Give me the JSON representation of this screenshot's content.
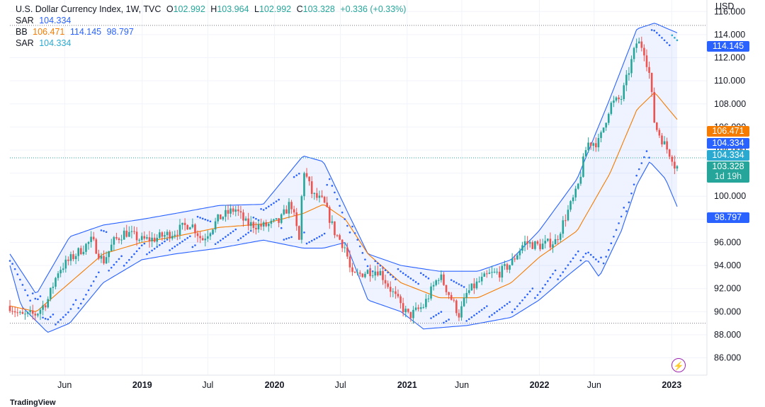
{
  "legend": {
    "symbol": "U.S. Dollar Currency Index, 1W, TVC",
    "o_label": "O",
    "o": "102.992",
    "h_label": "H",
    "h": "103.964",
    "l_label": "L",
    "l": "102.992",
    "c_label": "C",
    "c": "103.328",
    "change": "+0.336 (+0.33%)",
    "sar1_label": "SAR",
    "sar1": "104.334",
    "bb_label": "BB",
    "bb_basis": "106.471",
    "bb_upper": "114.145",
    "bb_lower": "98.797",
    "sar2_label": "SAR",
    "sar2": "104.334"
  },
  "axis": {
    "currency": "USD"
  },
  "price_tags": {
    "bb_upper": "114.145",
    "bb_basis": "106.471",
    "sar1": "104.334",
    "sar2": "104.334",
    "close": "103.328",
    "countdown": "1d 19h",
    "bb_lower": "98.797"
  },
  "colors": {
    "up": "#26a69a",
    "down": "#ef5350",
    "bb_band": "#2962ff",
    "bb_basis": "#f57c00",
    "sar": "#2962ff",
    "sar2": "#2aaad0"
  },
  "icons": [
    "lightning-icon",
    "tradingview-logo-icon"
  ],
  "footer": {
    "brand": "TradingView"
  },
  "chart_data": {
    "type": "candlestick",
    "y_axis": {
      "ticks": [
        "86.000",
        "88.000",
        "90.000",
        "92.000",
        "94.000",
        "96.000",
        "98.000",
        "100.000",
        "102.000",
        "104.000",
        "106.000",
        "108.000",
        "110.000",
        "112.000",
        "114.000",
        "116.000"
      ],
      "range": [
        84.5,
        117.0
      ]
    },
    "x_axis": {
      "ticks": [
        "Jun",
        "2019",
        "Jul",
        "2020",
        "Jul",
        "2021",
        "Jun",
        "2022",
        "Jun",
        "2023"
      ],
      "range": [
        "2018-01-01",
        "2023-01-20"
      ]
    },
    "tick_dates": [
      "2018-06-01",
      "2019-01-01",
      "2019-07-01",
      "2020-01-01",
      "2020-07-01",
      "2021-01-01",
      "2021-06-01",
      "2022-01-01",
      "2022-06-01",
      "2023-01-01"
    ],
    "reference_lines": [
      114.8,
      89.0
    ],
    "series": [
      {
        "name": "Close (approx.)",
        "points": [
          [
            "2018-01-01",
            90.5
          ],
          [
            "2018-02-01",
            89.6
          ],
          [
            "2018-03-15",
            89.8
          ],
          [
            "2018-04-15",
            91.0
          ],
          [
            "2018-05-15",
            93.6
          ],
          [
            "2018-06-15",
            94.5
          ],
          [
            "2018-08-15",
            96.2
          ],
          [
            "2018-09-15",
            94.3
          ],
          [
            "2018-10-15",
            96.1
          ],
          [
            "2018-11-15",
            96.9
          ],
          [
            "2018-12-31",
            96.2
          ],
          [
            "2019-02-01",
            96.3
          ],
          [
            "2019-04-01",
            96.9
          ],
          [
            "2019-05-15",
            97.7
          ],
          [
            "2019-06-15",
            96.2
          ],
          [
            "2019-08-01",
            98.1
          ],
          [
            "2019-09-15",
            98.9
          ],
          [
            "2019-10-15",
            97.6
          ],
          [
            "2019-12-01",
            97.4
          ],
          [
            "2020-01-15",
            97.8
          ],
          [
            "2020-02-15",
            99.5
          ],
          [
            "2020-03-10",
            96.0
          ],
          [
            "2020-03-20",
            102.5
          ],
          [
            "2020-04-15",
            100.1
          ],
          [
            "2020-05-15",
            99.5
          ],
          [
            "2020-06-15",
            96.9
          ],
          [
            "2020-07-15",
            95.5
          ],
          [
            "2020-08-01",
            93.0
          ],
          [
            "2020-09-15",
            93.5
          ],
          [
            "2020-10-15",
            93.6
          ],
          [
            "2020-11-15",
            92.0
          ],
          [
            "2020-12-15",
            90.5
          ],
          [
            "2021-01-06",
            89.6
          ],
          [
            "2021-02-15",
            90.5
          ],
          [
            "2021-03-31",
            93.2
          ],
          [
            "2021-04-30",
            91.3
          ],
          [
            "2021-05-25",
            89.7
          ],
          [
            "2021-06-15",
            91.6
          ],
          [
            "2021-07-15",
            92.5
          ],
          [
            "2021-08-15",
            93.2
          ],
          [
            "2021-09-15",
            93.4
          ],
          [
            "2021-10-15",
            94.2
          ],
          [
            "2021-11-20",
            96.0
          ],
          [
            "2021-12-31",
            95.7
          ],
          [
            "2022-02-15",
            96.1
          ],
          [
            "2022-03-15",
            98.3
          ],
          [
            "2022-04-15",
            100.5
          ],
          [
            "2022-05-13",
            104.6
          ],
          [
            "2022-06-15",
            104.7
          ],
          [
            "2022-07-15",
            107.9
          ],
          [
            "2022-08-15",
            108.5
          ],
          [
            "2022-09-27",
            113.4
          ],
          [
            "2022-10-15",
            112.9
          ],
          [
            "2022-11-01",
            110.5
          ],
          [
            "2022-11-15",
            106.2
          ],
          [
            "2022-12-15",
            104.3
          ],
          [
            "2023-01-06",
            103.2
          ],
          [
            "2023-01-13",
            102.0
          ],
          [
            "2023-01-20",
            103.3
          ]
        ]
      },
      {
        "name": "BB Upper (approx.)",
        "points": [
          [
            "2018-01-01",
            95.0
          ],
          [
            "2018-03-15",
            91.5
          ],
          [
            "2018-06-15",
            96.5
          ],
          [
            "2018-09-15",
            97.5
          ],
          [
            "2018-12-31",
            98.0
          ],
          [
            "2019-04-01",
            98.5
          ],
          [
            "2019-08-01",
            99.2
          ],
          [
            "2019-12-01",
            99.3
          ],
          [
            "2020-03-20",
            103.5
          ],
          [
            "2020-05-15",
            103.0
          ],
          [
            "2020-07-15",
            99.0
          ],
          [
            "2020-09-15",
            95.0
          ],
          [
            "2020-12-15",
            94.0
          ],
          [
            "2021-03-31",
            93.5
          ],
          [
            "2021-07-15",
            93.5
          ],
          [
            "2021-10-15",
            94.5
          ],
          [
            "2021-12-31",
            97.0
          ],
          [
            "2022-04-15",
            101.5
          ],
          [
            "2022-07-15",
            108.5
          ],
          [
            "2022-09-27",
            114.5
          ],
          [
            "2022-11-15",
            115.0
          ],
          [
            "2023-01-20",
            114.1
          ]
        ]
      },
      {
        "name": "BB Basis (approx.)",
        "points": [
          [
            "2018-01-01",
            90.5
          ],
          [
            "2018-03-15",
            90.0
          ],
          [
            "2018-06-15",
            92.5
          ],
          [
            "2018-09-15",
            95.0
          ],
          [
            "2018-12-31",
            96.0
          ],
          [
            "2019-04-01",
            96.5
          ],
          [
            "2019-08-01",
            97.3
          ],
          [
            "2019-12-01",
            97.6
          ],
          [
            "2020-03-20",
            98.5
          ],
          [
            "2020-05-15",
            99.3
          ],
          [
            "2020-07-15",
            98.0
          ],
          [
            "2020-09-15",
            95.0
          ],
          [
            "2020-12-15",
            92.5
          ],
          [
            "2021-03-31",
            91.2
          ],
          [
            "2021-07-15",
            91.2
          ],
          [
            "2021-10-15",
            92.5
          ],
          [
            "2021-12-31",
            94.7
          ],
          [
            "2022-04-15",
            97.0
          ],
          [
            "2022-07-15",
            102.0
          ],
          [
            "2022-09-27",
            107.5
          ],
          [
            "2022-11-15",
            109.0
          ],
          [
            "2023-01-20",
            106.5
          ]
        ]
      },
      {
        "name": "BB Lower (approx.)",
        "points": [
          [
            "2018-01-01",
            94.0
          ],
          [
            "2018-02-01",
            90.5
          ],
          [
            "2018-04-15",
            88.2
          ],
          [
            "2018-06-15",
            89.0
          ],
          [
            "2018-09-15",
            92.5
          ],
          [
            "2018-12-31",
            94.5
          ],
          [
            "2019-04-01",
            95.0
          ],
          [
            "2019-08-01",
            95.5
          ],
          [
            "2019-12-01",
            96.2
          ],
          [
            "2020-03-20",
            95.5
          ],
          [
            "2020-05-15",
            95.5
          ],
          [
            "2020-07-15",
            96.0
          ],
          [
            "2020-09-15",
            91.0
          ],
          [
            "2020-12-15",
            90.0
          ],
          [
            "2021-02-15",
            88.5
          ],
          [
            "2021-06-15",
            88.8
          ],
          [
            "2021-10-15",
            89.5
          ],
          [
            "2021-12-31",
            91.0
          ],
          [
            "2022-03-15",
            93.0
          ],
          [
            "2022-05-13",
            94.5
          ],
          [
            "2022-06-15",
            93.0
          ],
          [
            "2022-08-15",
            97.0
          ],
          [
            "2022-09-27",
            101.0
          ],
          [
            "2022-11-01",
            103.0
          ],
          [
            "2022-12-15",
            101.5
          ],
          [
            "2023-01-20",
            98.8
          ]
        ]
      }
    ]
  }
}
